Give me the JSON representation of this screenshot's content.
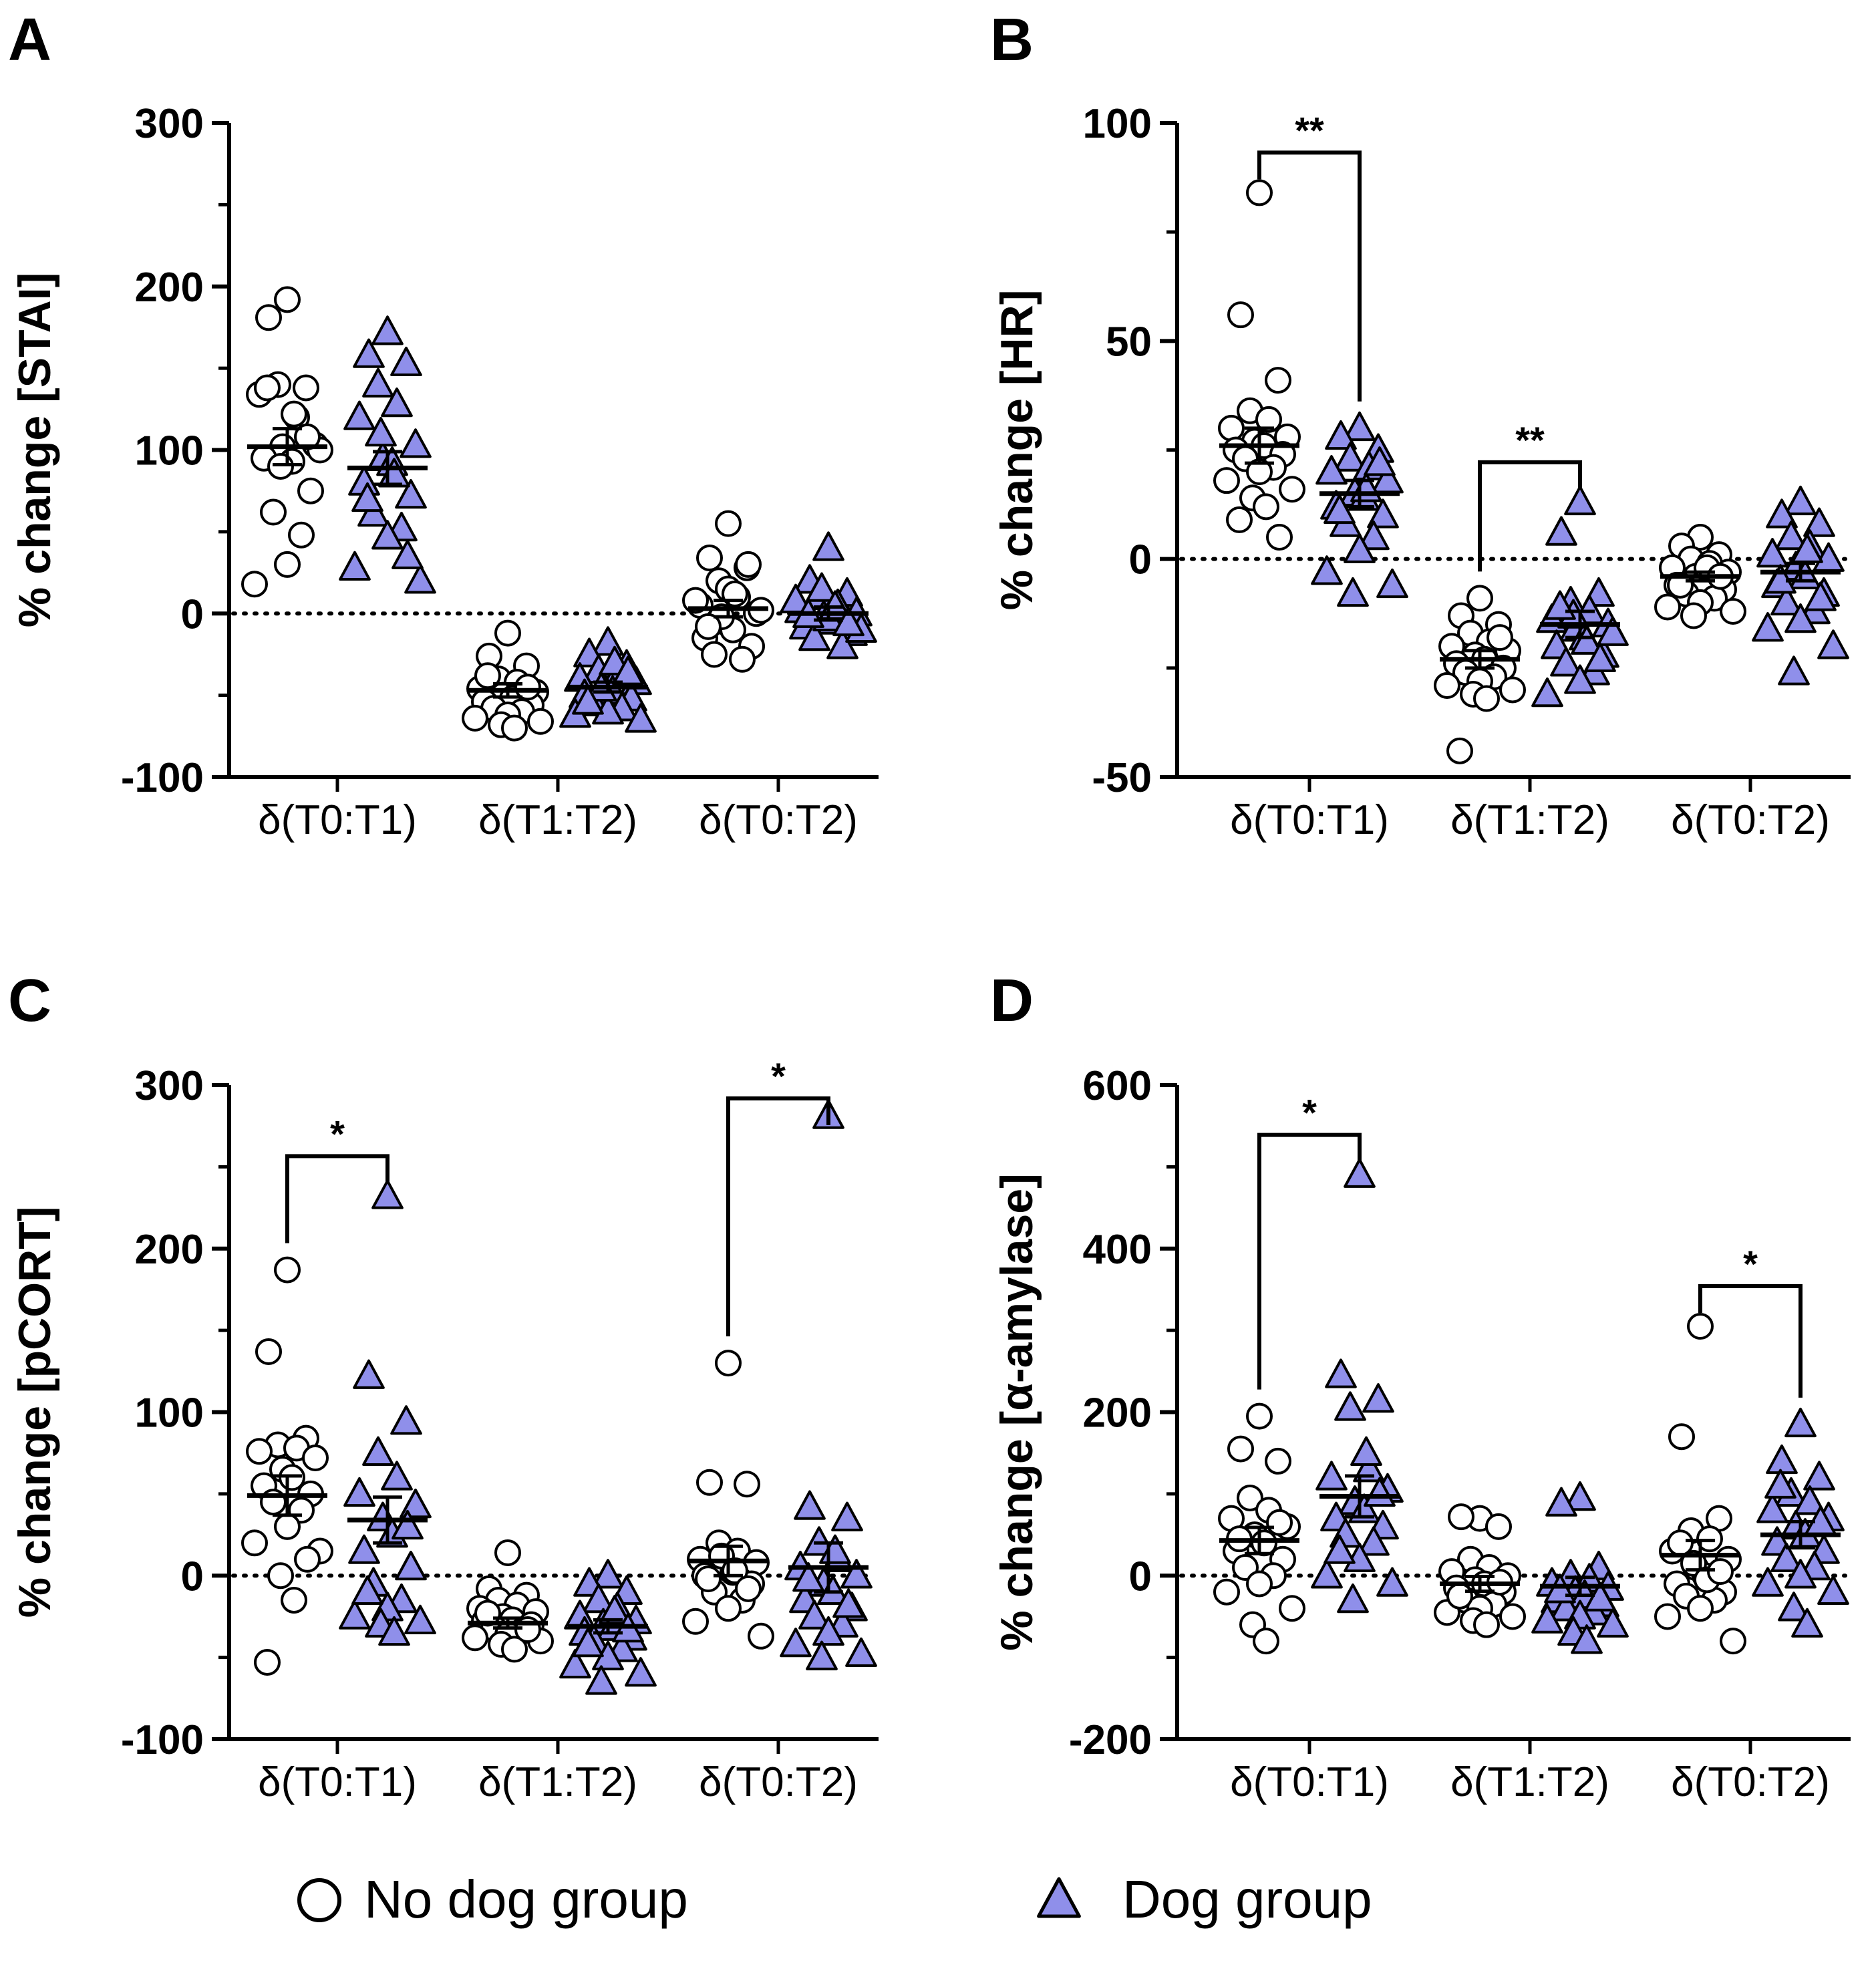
{
  "colors": {
    "dog_fill": "#8f8fea",
    "no_dog_fill": "#ffffff",
    "stroke": "#000000"
  },
  "legend": [
    {
      "label": "No dog group",
      "marker": "circle-icon"
    },
    {
      "label": "Dog group",
      "marker": "triangle-icon"
    }
  ],
  "chart_data": [
    {
      "panel": "A",
      "type": "scatter",
      "ylabel": "% change [STAI]",
      "ylim": [
        -100,
        300
      ],
      "yticks": [
        -100,
        0,
        100,
        200,
        300
      ],
      "categories": [
        "δ(T0:T1)",
        "δ(T1:T2)",
        "δ(T0:T2)"
      ],
      "series": [
        {
          "name": "No dog group",
          "points": [
            [
              192,
              181,
              138,
              140,
              120,
              134,
              103,
              102,
              93,
              95,
              75,
              62,
              48,
              30,
              18,
              100,
              90,
              122,
              138,
              108
            ],
            [
              -12,
              -26,
              -32,
              -40,
              -42,
              -46,
              -48,
              -50,
              -52,
              -54,
              -56,
              -58,
              -60,
              -62,
              -64,
              -66,
              -68,
              -70,
              -38,
              -45
            ],
            [
              55,
              34,
              28,
              20,
              10,
              5,
              0,
              -5,
              -10,
              -15,
              -20,
              -25,
              -28,
              15,
              8,
              2,
              -2,
              12,
              -8,
              30
            ]
          ],
          "means": [
            102,
            -47,
            3
          ],
          "sem": [
            11,
            4,
            5
          ]
        },
        {
          "name": "Dog group",
          "points": [
            [
              172,
              158,
              153,
              140,
              128,
              120,
              103,
              95,
              92,
              80,
              72,
              61,
              52,
              47,
              28,
              20,
              110,
              85,
              70,
              35
            ],
            [
              -18,
              -25,
              -32,
              -35,
              -38,
              -40,
              -42,
              -45,
              -48,
              -50,
              -52,
              -55,
              -58,
              -60,
              -62,
              -65,
              -46,
              -30,
              -54,
              -36
            ],
            [
              40,
              20,
              12,
              10,
              5,
              2,
              0,
              -2,
              -5,
              -8,
              -12,
              -15,
              -20,
              -3,
              8,
              -10,
              15,
              4,
              -1,
              -6
            ]
          ],
          "means": [
            89,
            -45,
            0
          ],
          "sem": [
            10,
            3,
            4
          ]
        }
      ],
      "significance": []
    },
    {
      "panel": "B",
      "type": "scatter",
      "ylabel": "% change [HR]",
      "ylim": [
        -50,
        100
      ],
      "yticks": [
        -50,
        0,
        50,
        100
      ],
      "categories": [
        "δ(T0:T1)",
        "δ(T1:T2)",
        "δ(T0:T2)"
      ],
      "series": [
        {
          "name": "No dog group",
          "points": [
            [
              84,
              56,
              41,
              34,
              32,
              30,
              28,
              27,
              26,
              25,
              24,
              23,
              21,
              20,
              18,
              16,
              14,
              12,
              9,
              5
            ],
            [
              -9,
              -13,
              -15,
              -17,
              -19,
              -20,
              -21,
              -22,
              -23,
              -24,
              -25,
              -26,
              -27,
              -28,
              -29,
              -30,
              -31,
              -32,
              -44,
              -18
            ],
            [
              5,
              3,
              1,
              0,
              -1,
              -2,
              -3,
              -4,
              -5,
              -6,
              -7,
              -8,
              -9,
              -10,
              -11,
              -12,
              -13,
              -2,
              -6,
              -4
            ]
          ],
          "means": [
            26,
            -23,
            -4
          ],
          "sem": [
            4,
            2,
            1
          ]
        },
        {
          "name": "Dog group",
          "points": [
            [
              30,
              28,
              25,
              23,
              21,
              20,
              18,
              15,
              14,
              12,
              10,
              8,
              5,
              2,
              -3,
              -6,
              -8,
              16,
              11,
              22
            ],
            [
              13,
              6,
              -8,
              -10,
              -12,
              -14,
              -15,
              -16,
              -18,
              -20,
              -22,
              -24,
              -26,
              -28,
              -31,
              -17,
              -13,
              -19,
              -11,
              -23
            ],
            [
              13,
              10,
              8,
              5,
              3,
              1,
              0,
              -2,
              -4,
              -6,
              -8,
              -10,
              -12,
              -14,
              -16,
              -20,
              -26,
              2,
              -5,
              -9
            ]
          ],
          "means": [
            15,
            -15,
            -3
          ],
          "sem": [
            3,
            3,
            2
          ]
        }
      ],
      "significance": [
        {
          "category": 0,
          "label": "**"
        },
        {
          "category": 1,
          "label": "**"
        }
      ]
    },
    {
      "panel": "C",
      "type": "scatter",
      "ylabel": "% change [pCORT]",
      "ylim": [
        -100,
        300
      ],
      "yticks": [
        -100,
        0,
        100,
        200,
        300
      ],
      "categories": [
        "δ(T0:T1)",
        "δ(T1:T2)",
        "δ(T0:T2)"
      ],
      "series": [
        {
          "name": "No dog group",
          "points": [
            [
              187,
              137,
              84,
              80,
              78,
              76,
              72,
              65,
              60,
              55,
              50,
              45,
              40,
              30,
              20,
              15,
              0,
              -15,
              -53,
              10
            ],
            [
              14,
              -8,
              -12,
              -15,
              -18,
              -20,
              -22,
              -25,
              -27,
              -28,
              -30,
              -32,
              -34,
              -36,
              -38,
              -40,
              -42,
              -45,
              -23,
              -33
            ],
            [
              130,
              57,
              56,
              20,
              15,
              10,
              8,
              5,
              2,
              0,
              -5,
              -10,
              -15,
              -20,
              -28,
              -37,
              12,
              3,
              -2,
              -8
            ]
          ],
          "means": [
            49,
            -29,
            9
          ],
          "sem": [
            12,
            3,
            9
          ]
        },
        {
          "name": "Dog group",
          "points": [
            [
              232,
              122,
              94,
              75,
              60,
              50,
              43,
              35,
              25,
              15,
              5,
              -5,
              -15,
              -20,
              -25,
              -28,
              -30,
              -35,
              -10,
              30
            ],
            [
              0,
              -5,
              -10,
              -15,
              -20,
              -25,
              -28,
              -30,
              -32,
              -35,
              -38,
              -40,
              -45,
              -50,
              -55,
              -60,
              -65,
              -22,
              -42,
              -33
            ],
            [
              281,
              42,
              35,
              20,
              10,
              5,
              0,
              -5,
              -10,
              -15,
              -20,
              -25,
              -30,
              -35,
              -42,
              -48,
              -50,
              15,
              -2,
              -18
            ]
          ],
          "means": [
            34,
            -31,
            5
          ],
          "sem": [
            14,
            4,
            15
          ]
        }
      ],
      "significance": [
        {
          "category": 0,
          "label": "*"
        },
        {
          "category": 2,
          "label": "*"
        }
      ]
    },
    {
      "panel": "D",
      "type": "scatter",
      "ylabel": "% change [α-amylase]",
      "ylim": [
        -200,
        600
      ],
      "yticks": [
        -200,
        0,
        200,
        400,
        600
      ],
      "categories": [
        "δ(T0:T1)",
        "δ(T1:T2)",
        "δ(T0:T2)"
      ],
      "series": [
        {
          "name": "No dog group",
          "points": [
            [
              195,
              155,
              140,
              95,
              80,
              70,
              60,
              50,
              40,
              30,
              20,
              10,
              0,
              -10,
              -20,
              -40,
              -60,
              -80,
              45,
              65
            ],
            [
              70,
              72,
              60,
              20,
              10,
              5,
              0,
              -5,
              -10,
              -15,
              -20,
              -30,
              -35,
              -40,
              -45,
              -50,
              -55,
              -60,
              -25,
              -8
            ],
            [
              305,
              170,
              70,
              55,
              45,
              30,
              20,
              10,
              0,
              -10,
              -20,
              -25,
              -30,
              -40,
              -50,
              -80,
              15,
              -5,
              40,
              5
            ]
          ],
          "means": [
            43,
            -10,
            25
          ],
          "sem": [
            16,
            9,
            18
          ]
        },
        {
          "name": "Dog group",
          "points": [
            [
              490,
              245,
              215,
              205,
              130,
              120,
              105,
              90,
              80,
              70,
              60,
              50,
              40,
              20,
              0,
              -10,
              -30,
              150,
              30,
              100
            ],
            [
              95,
              88,
              10,
              0,
              -5,
              -10,
              -15,
              -20,
              -25,
              -30,
              -35,
              -40,
              -45,
              -50,
              -55,
              -60,
              -70,
              -80,
              -18,
              -28
            ],
            [
              185,
              140,
              120,
              100,
              90,
              80,
              70,
              60,
              50,
              40,
              30,
              20,
              10,
              0,
              -10,
              -20,
              -40,
              -60,
              110,
              65
            ]
          ],
          "means": [
            97,
            -13,
            50
          ],
          "sem": [
            25,
            11,
            16
          ]
        }
      ],
      "significance": [
        {
          "category": 0,
          "label": "*"
        },
        {
          "category": 2,
          "label": "*"
        }
      ]
    }
  ]
}
